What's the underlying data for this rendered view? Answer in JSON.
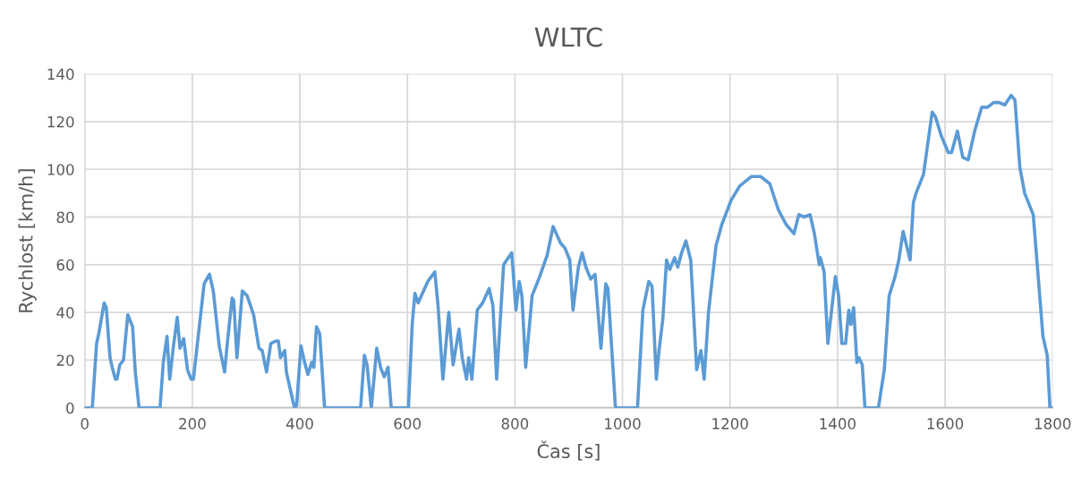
{
  "chart_data": {
    "type": "line",
    "title": "WLTC",
    "xlabel": "Čas [s]",
    "ylabel": "Rychlost [km/h]",
    "xlim": [
      0,
      1800
    ],
    "xticks": [
      0,
      200,
      400,
      600,
      800,
      1000,
      1200,
      1400,
      1600,
      1800
    ],
    "ylim": [
      0,
      140
    ],
    "yticks": [
      0,
      20,
      40,
      60,
      80,
      100,
      120,
      140
    ],
    "grid": true,
    "marker": "none",
    "line_style": "solid",
    "series": [
      {
        "color": "#5b9bd5",
        "x": [
          0,
          14,
          22,
          26,
          36,
          40,
          47,
          51,
          57,
          60,
          65,
          72,
          80,
          89,
          94,
          101,
          140,
          146,
          153,
          158,
          165,
          172,
          177,
          184,
          191,
          198,
          202,
          211,
          222,
          232,
          239,
          250,
          260,
          266,
          274,
          277,
          283,
          293,
          302,
          314,
          324,
          330,
          338,
          346,
          355,
          360,
          364,
          372,
          375,
          383,
          390,
          394,
          402,
          409,
          415,
          422,
          426,
          431,
          437,
          446,
          513,
          520,
          525,
          533,
          543,
          550,
          557,
          564,
          570,
          602,
          609,
          614,
          620,
          638,
          651,
          657,
          666,
          677,
          685,
          696,
          702,
          710,
          714,
          720,
          730,
          740,
          752,
          759,
          766,
          779,
          794,
          802,
          808,
          813,
          820,
          832,
          846,
          860,
          871,
          885,
          893,
          902,
          908,
          918,
          925,
          932,
          941,
          949,
          960,
          969,
          973,
          987,
          1028,
          1038,
          1049,
          1055,
          1063,
          1068,
          1075,
          1082,
          1088,
          1097,
          1103,
          1110,
          1118,
          1127,
          1138,
          1146,
          1152,
          1160,
          1174,
          1185,
          1202,
          1218,
          1240,
          1257,
          1274,
          1290,
          1304,
          1319,
          1328,
          1338,
          1349,
          1357,
          1366,
          1368,
          1375,
          1382,
          1396,
          1402,
          1408,
          1415,
          1421,
          1425,
          1430,
          1436,
          1440,
          1446,
          1451,
          1476,
          1487,
          1496,
          1507,
          1514,
          1522,
          1535,
          1541,
          1546,
          1560,
          1576,
          1582,
          1593,
          1606,
          1612,
          1623,
          1633,
          1643,
          1655,
          1668,
          1679,
          1690,
          1701,
          1711,
          1723,
          1730,
          1739,
          1748,
          1764,
          1782,
          1790,
          1795,
          1800
        ],
        "values": [
          0,
          0,
          27,
          31,
          44,
          42,
          21,
          17,
          12,
          12,
          18,
          20,
          39,
          34,
          15,
          0,
          0,
          19,
          30,
          12,
          26,
          38,
          25,
          29,
          16,
          12,
          12,
          30,
          52,
          56,
          49,
          26,
          15,
          29,
          46,
          45,
          21,
          49,
          47,
          39,
          25,
          24,
          15,
          27,
          28,
          28,
          21,
          24,
          15,
          7,
          0,
          1,
          26,
          19,
          14,
          19,
          17,
          34,
          31,
          0,
          0,
          22,
          18,
          0,
          25,
          17,
          13,
          17,
          0,
          0,
          35,
          48,
          44,
          53,
          57,
          43,
          12,
          40,
          18,
          33,
          21,
          12,
          21,
          12,
          41,
          44,
          50,
          43,
          12,
          60,
          65,
          41,
          53,
          47,
          17,
          47,
          55,
          64,
          76,
          69,
          67,
          62,
          41,
          59,
          65,
          59,
          54,
          56,
          25,
          52,
          50,
          0,
          0,
          41,
          53,
          51,
          12,
          24,
          37,
          62,
          58,
          63,
          59,
          65,
          70,
          62,
          16,
          24,
          12,
          40,
          68,
          77,
          87,
          93,
          97,
          97,
          94,
          83,
          77,
          73,
          81,
          80,
          81,
          73,
          60,
          63,
          57,
          27,
          55,
          47,
          27,
          27,
          41,
          35,
          42,
          19,
          21,
          18,
          0,
          0,
          16,
          47,
          55,
          62,
          74,
          62,
          86,
          90,
          98,
          124,
          122,
          114,
          107,
          107,
          116,
          105,
          104,
          116,
          126,
          126,
          128,
          128,
          127,
          131,
          129,
          101,
          90,
          81,
          30,
          22,
          0,
          0
        ]
      }
    ]
  }
}
